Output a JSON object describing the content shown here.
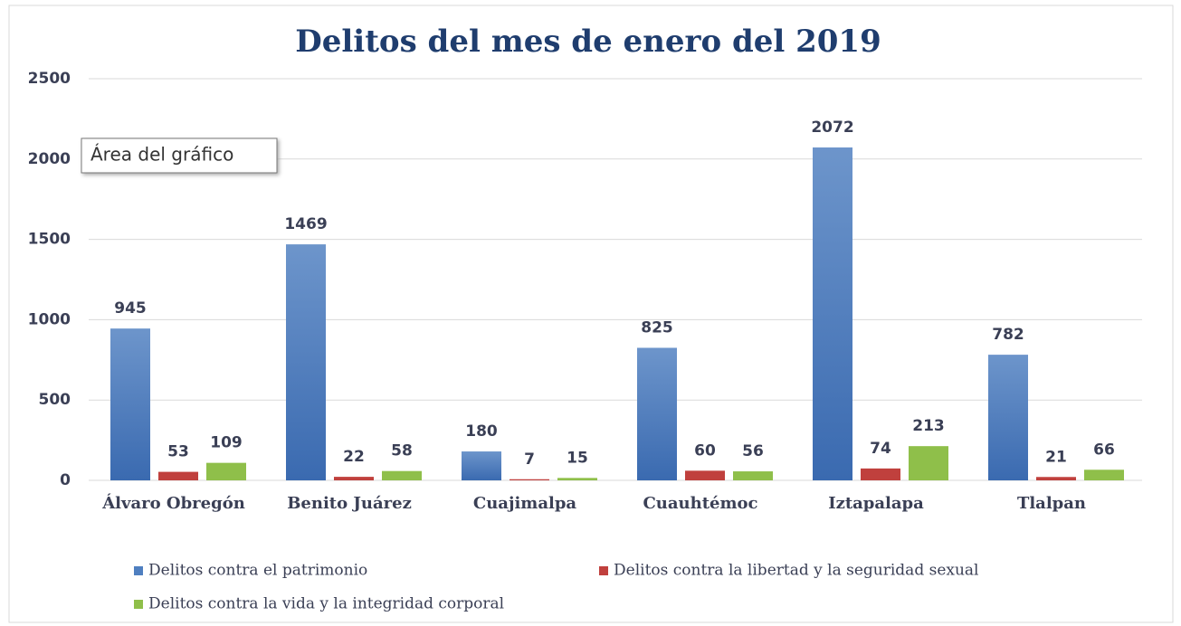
{
  "chart_data": {
    "type": "bar",
    "title": "Delitos del mes de enero del 2019",
    "tooltip": "Área del gráfico",
    "categories": [
      "Álvaro Obregón",
      "Benito Juárez",
      "Cuajimalpa",
      "Cuauhtémoc",
      "Iztapalapa",
      "Tlalpan"
    ],
    "series": [
      {
        "name": "Delitos contra el patrimonio",
        "color": "#4f7fc0",
        "values": [
          945,
          1469,
          180,
          825,
          2072,
          782
        ]
      },
      {
        "name": "Delitos contra la libertad y la seguridad sexual",
        "color": "#c0403d",
        "values": [
          53,
          22,
          7,
          60,
          74,
          21
        ]
      },
      {
        "name": "Delitos contra la vida y la integridad corporal",
        "color": "#8fbf4a",
        "values": [
          109,
          58,
          15,
          56,
          213,
          66
        ]
      }
    ],
    "ylim": [
      0,
      2500
    ],
    "yticks": [
      0,
      500,
      1000,
      1500,
      2000,
      2500
    ],
    "grid": true
  }
}
